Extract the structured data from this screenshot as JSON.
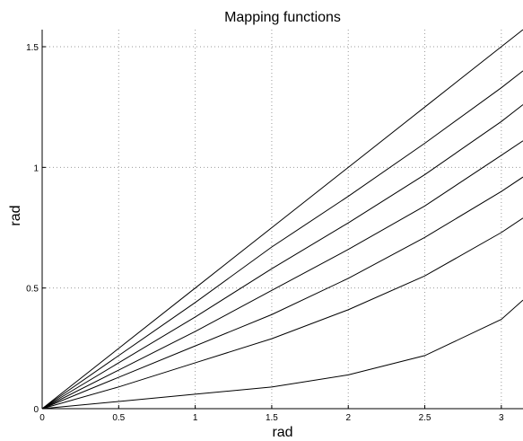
{
  "chart_data": {
    "type": "line",
    "title": "Mapping functions",
    "xlabel": "rad",
    "ylabel": "rad",
    "xlim": [
      0,
      3.1416
    ],
    "ylim": [
      0,
      1.5708
    ],
    "xticks": [
      0,
      0.5,
      1,
      1.5,
      2,
      2.5,
      3
    ],
    "xtick_labels": [
      "0",
      "0.5",
      "1",
      "1.5",
      "2",
      "2.5",
      "3"
    ],
    "yticks": [
      0,
      0.5,
      1,
      1.5
    ],
    "ytick_labels": [
      "0",
      "0.5",
      "1",
      "1.5"
    ],
    "grid": true,
    "legend": false,
    "line_color": "#000000",
    "series": [
      {
        "x": [
          0,
          0.5,
          1,
          1.5,
          2,
          2.5,
          3,
          3.1416
        ],
        "y": [
          0,
          0.25,
          0.5,
          0.75,
          1.0,
          1.25,
          1.5,
          1.5708
        ]
      },
      {
        "x": [
          0,
          0.5,
          1,
          1.5,
          2,
          2.5,
          3,
          3.1416
        ],
        "y": [
          0,
          0.22,
          0.44,
          0.67,
          0.88,
          1.1,
          1.33,
          1.4
        ]
      },
      {
        "x": [
          0,
          0.5,
          1,
          1.5,
          2,
          2.5,
          3,
          3.1416
        ],
        "y": [
          0,
          0.19,
          0.38,
          0.58,
          0.77,
          0.97,
          1.19,
          1.26
        ]
      },
      {
        "x": [
          0,
          0.5,
          1,
          1.5,
          2,
          2.5,
          3,
          3.1416
        ],
        "y": [
          0,
          0.16,
          0.32,
          0.49,
          0.66,
          0.84,
          1.05,
          1.11
        ]
      },
      {
        "x": [
          0,
          0.5,
          1,
          1.5,
          2,
          2.5,
          3,
          3.1416
        ],
        "y": [
          0,
          0.13,
          0.26,
          0.39,
          0.54,
          0.71,
          0.9,
          0.96
        ]
      },
      {
        "x": [
          0,
          0.5,
          1,
          1.5,
          2,
          2.5,
          3,
          3.1416
        ],
        "y": [
          0,
          0.09,
          0.19,
          0.29,
          0.41,
          0.55,
          0.73,
          0.79
        ]
      },
      {
        "x": [
          0,
          0.5,
          1,
          1.5,
          2,
          2.5,
          3,
          3.1416
        ],
        "y": [
          0,
          0.03,
          0.06,
          0.09,
          0.14,
          0.22,
          0.37,
          0.45
        ]
      }
    ]
  }
}
